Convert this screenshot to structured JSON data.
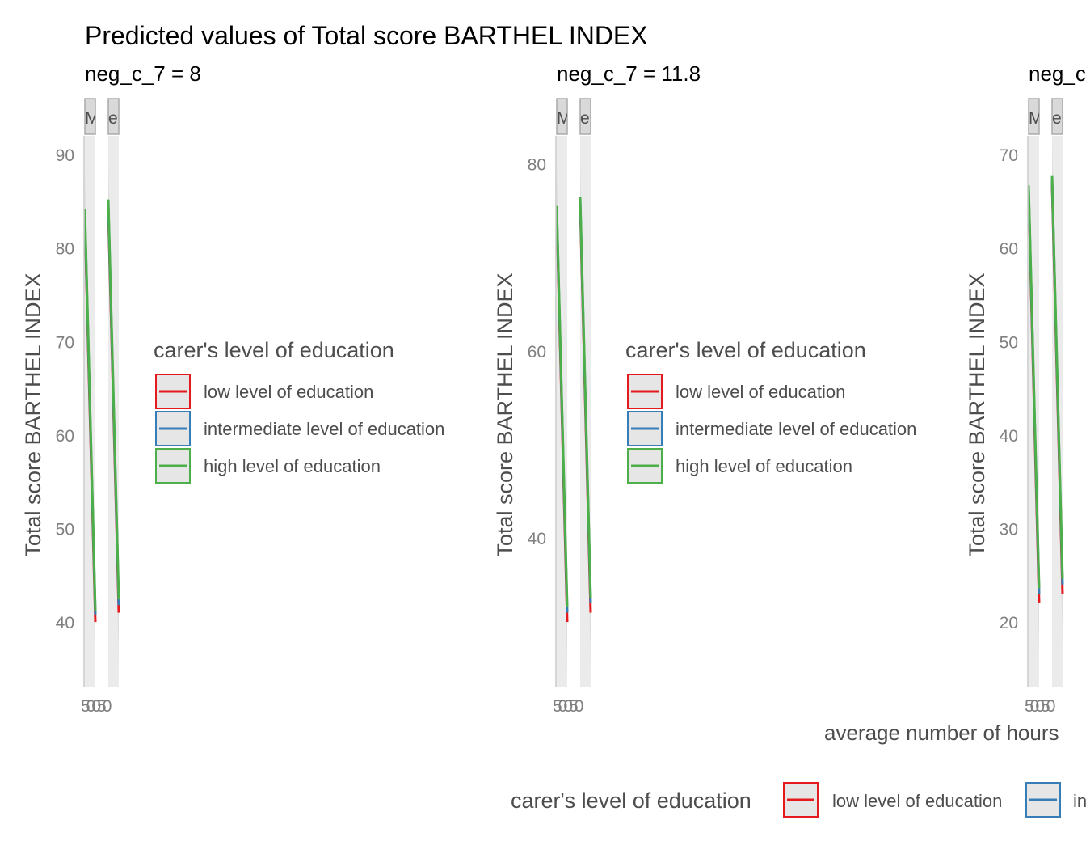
{
  "chart_data": {
    "type": "line",
    "title": "Predicted values of Total score BARTHEL INDEX",
    "xlabel": "average number of hours",
    "ylabel": "Total score BARTHEL INDEX",
    "legend": {
      "title": "carer's level of education",
      "placement": "right of each panel and bottom",
      "entries": [
        {
          "name": "low level of education",
          "color": "#e41a1c"
        },
        {
          "name": "intermediate level of education",
          "color": "#377eb8"
        },
        {
          "name": "high level of education",
          "color": "#4daf4a"
        }
      ]
    },
    "panels": [
      {
        "subtitle": "neg_c_7 = 8",
        "ylim": [
          33,
          92
        ],
        "yticks": [
          40,
          50,
          60,
          70,
          80,
          90
        ],
        "strips": [
          "M",
          "er"
        ],
        "xtick_text": "50050",
        "facets": [
          {
            "low": [
              83.0,
              40.0
            ],
            "intermediate": [
              83.6,
              40.8
            ],
            "high": [
              84.2,
              41.2
            ]
          },
          {
            "low": [
              84.0,
              41.0
            ],
            "intermediate": [
              84.6,
              41.8
            ],
            "high": [
              85.2,
              42.4
            ]
          }
        ]
      },
      {
        "subtitle": "neg_c_7 = 11.8",
        "ylim": [
          24,
          83
        ],
        "yticks": [
          40,
          60,
          80
        ],
        "strips": [
          "M",
          "er"
        ],
        "xtick_text": "50050",
        "facets": [
          {
            "low": [
              74.6,
              31.0
            ],
            "intermediate": [
              75.1,
              32.0
            ],
            "high": [
              75.5,
              32.6
            ]
          },
          {
            "low": [
              75.6,
              32.0
            ],
            "intermediate": [
              76.1,
              33.0
            ],
            "high": [
              76.5,
              33.6
            ]
          }
        ]
      },
      {
        "subtitle": "neg_c",
        "ylim": [
          13,
          72
        ],
        "yticks": [
          20,
          30,
          40,
          50,
          60,
          70
        ],
        "strips": [
          "M",
          "e"
        ],
        "xtick_text": "50050",
        "facets": [
          {
            "low": [
              65.8,
              22.0
            ],
            "intermediate": [
              66.3,
              23.0
            ],
            "high": [
              66.7,
              23.6
            ]
          },
          {
            "low": [
              66.8,
              23.0
            ],
            "intermediate": [
              67.3,
              24.0
            ],
            "high": [
              67.7,
              24.6
            ]
          }
        ]
      }
    ],
    "bottom_legend_visible": [
      "low level of education",
      "in"
    ]
  }
}
